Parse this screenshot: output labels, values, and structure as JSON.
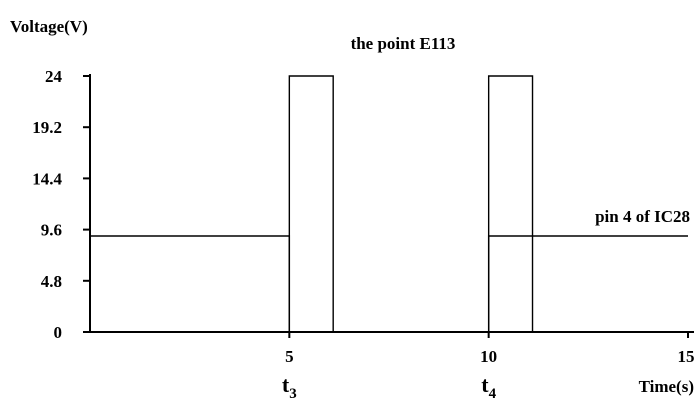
{
  "chart_data": {
    "type": "line",
    "ylabel": "Voltage(V)",
    "xlabel": "Time(s)",
    "xlim": [
      0,
      15
    ],
    "ylim": [
      0,
      24
    ],
    "x_ticks": [
      5,
      10,
      15
    ],
    "x_tick_labels": [
      "5",
      "10",
      "15"
    ],
    "y_ticks": [
      0,
      4.8,
      9.6,
      14.4,
      19.2,
      24
    ],
    "y_tick_labels": [
      "0",
      "4.8",
      "9.6",
      "14.4",
      "19.2",
      "24"
    ],
    "x_markers": [
      {
        "x": 5,
        "main": "t",
        "sub": "3"
      },
      {
        "x": 10,
        "main": "t",
        "sub": "4"
      }
    ],
    "grid": false,
    "annotations": [
      {
        "text": "the point E113",
        "series_ref": 0
      },
      {
        "text": "pin 4 of IC28",
        "series_ref": 1
      }
    ],
    "series": [
      {
        "name": "the point E113",
        "x": [
          5,
          5,
          6.1,
          6.1,
          10,
          10,
          11.1,
          11.1
        ],
        "y": [
          0,
          24,
          24,
          0,
          0,
          24,
          24,
          0
        ]
      },
      {
        "name": "pin 4 of IC28",
        "x": [
          0,
          5,
          5,
          10,
          10,
          15
        ],
        "y": [
          9,
          9,
          0,
          0,
          9,
          9
        ]
      }
    ],
    "colors": {
      "line": "#000000",
      "background": "#ffffff"
    }
  }
}
